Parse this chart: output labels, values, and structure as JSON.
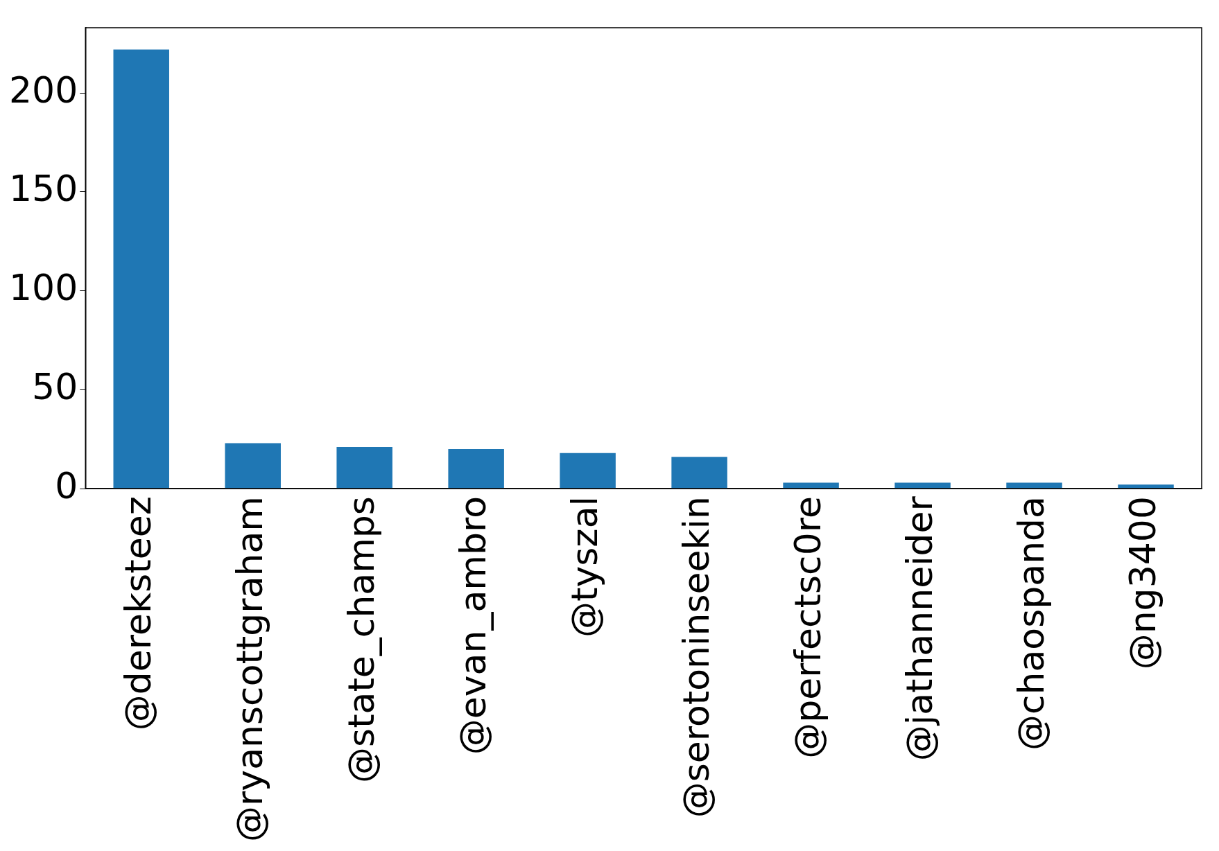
{
  "chart_data": {
    "type": "bar",
    "categories": [
      "@dereksteez",
      "@ryanscottgraham",
      "@state_champs",
      "@evan_ambro",
      "@tyszal",
      "@serotoninseekin",
      "@perfectsc0re",
      "@jathanneider",
      "@chaospanda",
      "@ng3400"
    ],
    "values": [
      222,
      23,
      21,
      20,
      18,
      16,
      3,
      3,
      3,
      2
    ],
    "color": "#1f77b4",
    "ylim": [
      0,
      233
    ],
    "yticks": [
      0,
      50,
      100,
      150,
      200
    ],
    "grid": false,
    "legend": false
  }
}
